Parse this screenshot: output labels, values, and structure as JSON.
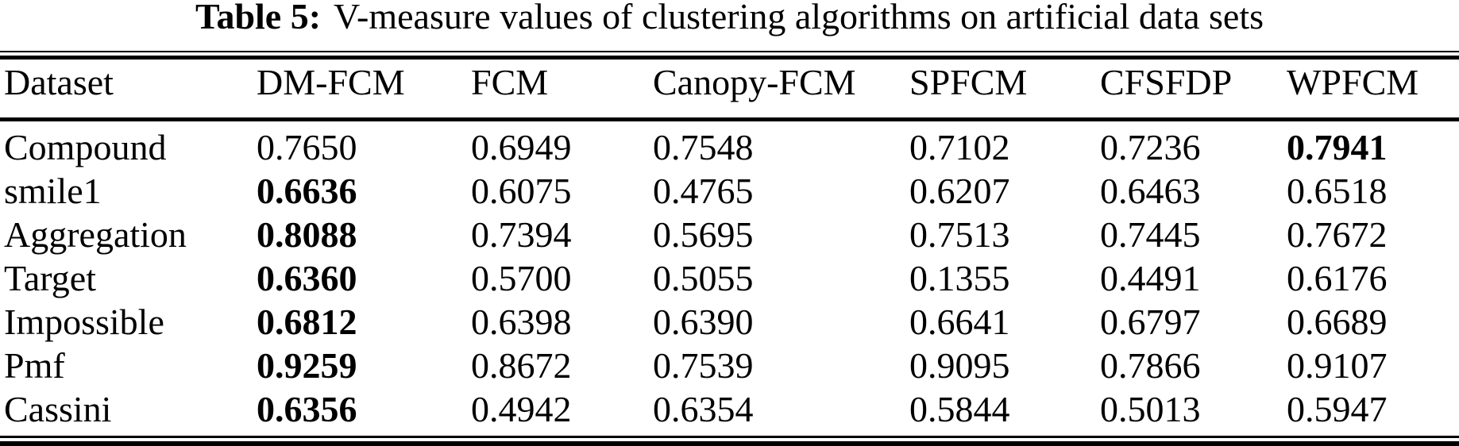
{
  "caption": {
    "label": "Table 5:",
    "text": "V-measure values of clustering algorithms on artificial data sets"
  },
  "chart_data": {
    "type": "table",
    "title": "Table 5: V-measure values of clustering algorithms on artificial data sets",
    "columns": [
      "Dataset",
      "DM-FCM",
      "FCM",
      "Canopy-FCM",
      "SPFCM",
      "CFSFDP",
      "WPFCM"
    ],
    "rows": [
      {
        "dataset": "Compound",
        "values": [
          "0.7650",
          "0.6949",
          "0.7548",
          "0.7102",
          "0.7236",
          "0.7941"
        ],
        "bold_value_index": 5
      },
      {
        "dataset": "smile1",
        "values": [
          "0.6636",
          "0.6075",
          "0.4765",
          "0.6207",
          "0.6463",
          "0.6518"
        ],
        "bold_value_index": 0
      },
      {
        "dataset": "Aggregation",
        "values": [
          "0.8088",
          "0.7394",
          "0.5695",
          "0.7513",
          "0.7445",
          "0.7672"
        ],
        "bold_value_index": 0
      },
      {
        "dataset": "Target",
        "values": [
          "0.6360",
          "0.5700",
          "0.5055",
          "0.1355",
          "0.4491",
          "0.6176"
        ],
        "bold_value_index": 0
      },
      {
        "dataset": "Impossible",
        "values": [
          "0.6812",
          "0.6398",
          "0.6390",
          "0.6641",
          "0.6797",
          "0.6689"
        ],
        "bold_value_index": 0
      },
      {
        "dataset": "Pmf",
        "values": [
          "0.9259",
          "0.8672",
          "0.7539",
          "0.9095",
          "0.7866",
          "0.9107"
        ],
        "bold_value_index": 0
      },
      {
        "dataset": "Cassini",
        "values": [
          "0.6356",
          "0.4942",
          "0.6354",
          "0.5844",
          "0.5013",
          "0.5947"
        ],
        "bold_value_index": 0
      }
    ]
  },
  "colors": {
    "text": "#000000",
    "background": "#ffffff",
    "rule": "#000000"
  }
}
